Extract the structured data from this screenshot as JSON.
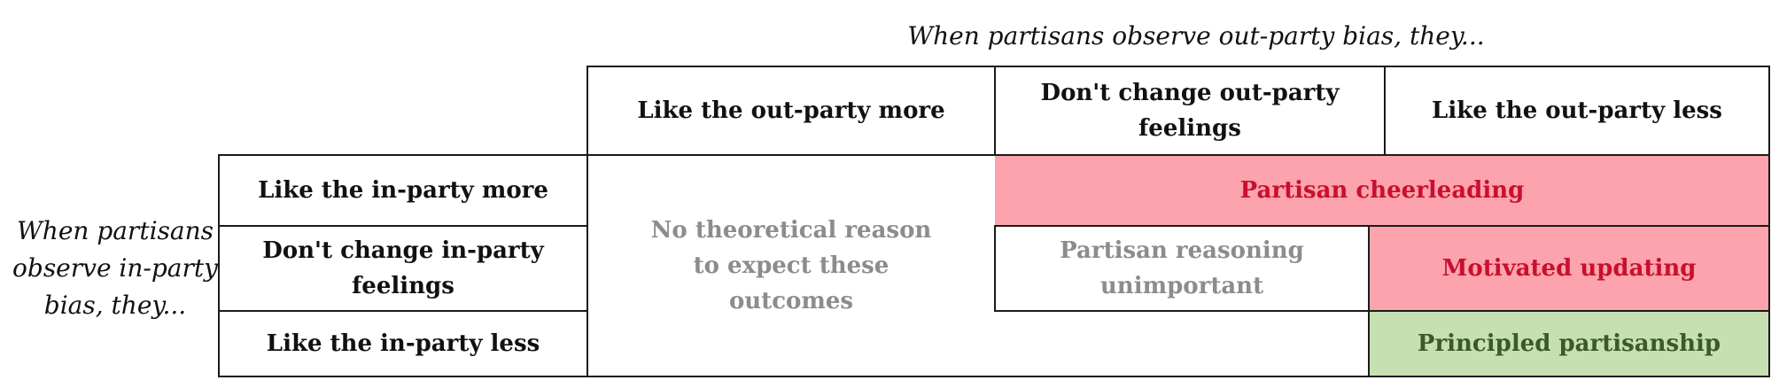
{
  "top_caption": "When partisans observe out-party bias, they...",
  "left_caption": "When partisans observe in-party bias, they...",
  "columns": [
    "Like the out-party more",
    "Don't change out-party feelings",
    "Like the out-party less"
  ],
  "rows": [
    "Like the in-party more",
    "Don't change in-party feelings",
    "Like the in-party less"
  ],
  "regions": {
    "no_reason": "No theoretical reason to expect these outcomes",
    "cheerleading": "Partisan cheerleading",
    "unimportant": "Partisan reasoning unimportant",
    "motivated": "Motivated updating",
    "principled": "Principled partisanship"
  },
  "colors": {
    "cheerleading_fill": "#fca3ad",
    "motivated_fill": "#fca3ad",
    "principled_fill": "#c6e0b4",
    "red_text": "#c8102e",
    "green_text": "#3b5a2a",
    "grey_text": "#8c8c8c"
  }
}
